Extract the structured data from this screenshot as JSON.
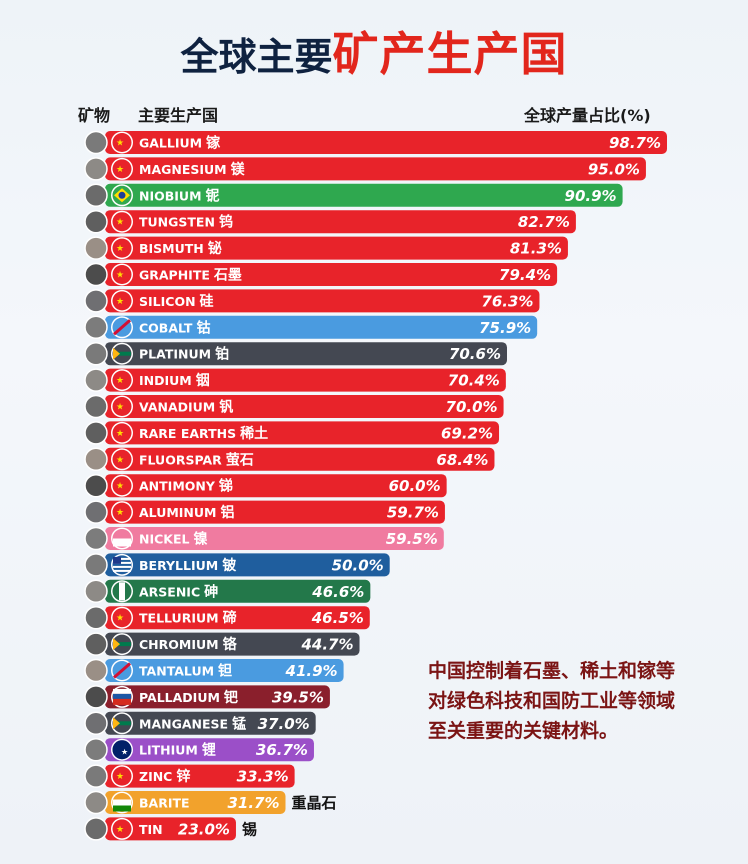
{
  "title": {
    "part1": "全球主要",
    "part2": "矿产生产国"
  },
  "headers": {
    "mineral": "矿物",
    "producer": "主要生产国",
    "share": "全球产量占比(%)"
  },
  "note": "中国控制着石墨、稀土和镓等对绿色科技和国防工业等领域至关重要的关键材料。",
  "colors": {
    "china": "#e8232a",
    "brazil": "#2fa84f",
    "drc": "#4a9be0",
    "south_africa": "#444852",
    "indonesia": "#f07ba0",
    "usa": "#1f5e9e",
    "peru": "#23784a",
    "russia": "#8a1f2c",
    "australia": "#9b4fc8",
    "india": "#f2a22c"
  },
  "chart_data": {
    "type": "bar",
    "orientation": "horizontal",
    "xlim": [
      0,
      100
    ],
    "categories": [
      "GALLIUM 镓",
      "MAGNESIUM 镁",
      "NIOBIUM 铌",
      "TUNGSTEN 钨",
      "BISMUTH 铋",
      "GRAPHITE 石墨",
      "SILICON 硅",
      "COBALT 钴",
      "PLATINUM 铂",
      "INDIUM 铟",
      "VANADIUM 钒",
      "RARE EARTHS 稀土",
      "FLUORSPAR 萤石",
      "ANTIMONY 锑",
      "ALUMINUM 铝",
      "NICKEL 镍",
      "BERYLLIUM 铍",
      "ARSENIC 砷",
      "TELLURIUM 碲",
      "CHROMIUM 铬",
      "TANTALUM 钽",
      "PALLADIUM 钯",
      "MANGANESE 锰",
      "LITHIUM 锂",
      "ZINC 锌",
      "BARITE 重晶石",
      "TIN 锡"
    ],
    "rows": [
      {
        "en": "GALLIUM",
        "cn": "镓",
        "value": 98.7,
        "label": "98.7%",
        "country": "china"
      },
      {
        "en": "MAGNESIUM",
        "cn": "镁",
        "value": 95.0,
        "label": "95.0%",
        "country": "china"
      },
      {
        "en": "NIOBIUM",
        "cn": "铌",
        "value": 90.9,
        "label": "90.9%",
        "country": "brazil"
      },
      {
        "en": "TUNGSTEN",
        "cn": "钨",
        "value": 82.7,
        "label": "82.7%",
        "country": "china"
      },
      {
        "en": "BISMUTH",
        "cn": "铋",
        "value": 81.3,
        "label": "81.3%",
        "country": "china"
      },
      {
        "en": "GRAPHITE",
        "cn": "石墨",
        "value": 79.4,
        "label": "79.4%",
        "country": "china"
      },
      {
        "en": "SILICON",
        "cn": "硅",
        "value": 76.3,
        "label": "76.3%",
        "country": "china"
      },
      {
        "en": "COBALT",
        "cn": "钴",
        "value": 75.9,
        "label": "75.9%",
        "country": "drc"
      },
      {
        "en": "PLATINUM",
        "cn": "铂",
        "value": 70.6,
        "label": "70.6%",
        "country": "south_africa"
      },
      {
        "en": "INDIUM",
        "cn": "铟",
        "value": 70.4,
        "label": "70.4%",
        "country": "china"
      },
      {
        "en": "VANADIUM",
        "cn": "钒",
        "value": 70.0,
        "label": "70.0%",
        "country": "china"
      },
      {
        "en": "RARE EARTHS",
        "cn": "稀土",
        "value": 69.2,
        "label": "69.2%",
        "country": "china"
      },
      {
        "en": "FLUORSPAR",
        "cn": "萤石",
        "value": 68.4,
        "label": "68.4%",
        "country": "china"
      },
      {
        "en": "ANTIMONY",
        "cn": "锑",
        "value": 60.0,
        "label": "60.0%",
        "country": "china"
      },
      {
        "en": "ALUMINUM",
        "cn": "铝",
        "value": 59.7,
        "label": "59.7%",
        "country": "china"
      },
      {
        "en": "NICKEL",
        "cn": "镍",
        "value": 59.5,
        "label": "59.5%",
        "country": "indonesia"
      },
      {
        "en": "BERYLLIUM",
        "cn": "铍",
        "value": 50.0,
        "label": "50.0%",
        "country": "usa"
      },
      {
        "en": "ARSENIC",
        "cn": "砷",
        "value": 46.6,
        "label": "46.6%",
        "country": "peru"
      },
      {
        "en": "TELLURIUM",
        "cn": "碲",
        "value": 46.5,
        "label": "46.5%",
        "country": "china"
      },
      {
        "en": "CHROMIUM",
        "cn": "铬",
        "value": 44.7,
        "label": "44.7%",
        "country": "south_africa"
      },
      {
        "en": "TANTALUM",
        "cn": "钽",
        "value": 41.9,
        "label": "41.9%",
        "country": "drc"
      },
      {
        "en": "PALLADIUM",
        "cn": "钯",
        "value": 39.5,
        "label": "39.5%",
        "country": "russia"
      },
      {
        "en": "MANGANESE",
        "cn": "锰",
        "value": 37.0,
        "label": "37.0%",
        "country": "south_africa"
      },
      {
        "en": "LITHIUM",
        "cn": "锂",
        "value": 36.7,
        "label": "36.7%",
        "country": "australia"
      },
      {
        "en": "ZINC",
        "cn": "锌",
        "value": 33.3,
        "label": "33.3%",
        "country": "china"
      },
      {
        "en": "BARITE",
        "cn": "重晶石",
        "value": 31.7,
        "label": "31.7%",
        "country": "india",
        "cn_outside": true
      },
      {
        "en": "TIN",
        "cn": "锡",
        "value": 23.0,
        "label": "23.0%",
        "country": "china",
        "cn_outside": true
      }
    ]
  }
}
